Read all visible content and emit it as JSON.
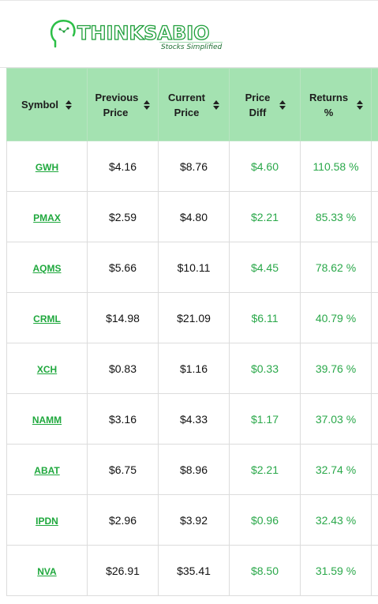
{
  "brand": {
    "name_part1": "THINK",
    "name_part2": "ABIO",
    "tagline": "Stocks Simplified",
    "accent_color": "#2cbf47",
    "header_color": "#a4e2b1"
  },
  "table": {
    "columns": [
      {
        "label": "Symbol"
      },
      {
        "label": "Previous Price"
      },
      {
        "label": "Current Price"
      },
      {
        "label": "Price Diff"
      },
      {
        "label": "Returns %"
      }
    ],
    "rows": [
      {
        "symbol": "GWH",
        "previous": "$4.16",
        "current": "$8.76",
        "diff": "$4.60",
        "returns": "110.58 %"
      },
      {
        "symbol": "PMAX",
        "previous": "$2.59",
        "current": "$4.80",
        "diff": "$2.21",
        "returns": "85.33 %"
      },
      {
        "symbol": "AQMS",
        "previous": "$5.66",
        "current": "$10.11",
        "diff": "$4.45",
        "returns": "78.62 %"
      },
      {
        "symbol": "CRML",
        "previous": "$14.98",
        "current": "$21.09",
        "diff": "$6.11",
        "returns": "40.79 %"
      },
      {
        "symbol": "XCH",
        "previous": "$0.83",
        "current": "$1.16",
        "diff": "$0.33",
        "returns": "39.76 %"
      },
      {
        "symbol": "NAMM",
        "previous": "$3.16",
        "current": "$4.33",
        "diff": "$1.17",
        "returns": "37.03 %"
      },
      {
        "symbol": "ABAT",
        "previous": "$6.75",
        "current": "$8.96",
        "diff": "$2.21",
        "returns": "32.74 %"
      },
      {
        "symbol": "IPDN",
        "previous": "$2.96",
        "current": "$3.92",
        "diff": "$0.96",
        "returns": "32.43 %"
      },
      {
        "symbol": "NVA",
        "previous": "$26.91",
        "current": "$35.41",
        "diff": "$8.50",
        "returns": "31.59 %"
      }
    ]
  }
}
